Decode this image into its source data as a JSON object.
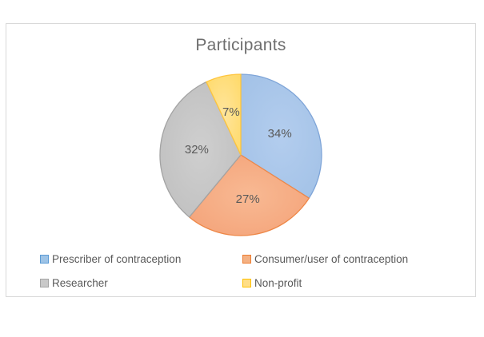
{
  "frame": {
    "border_color": "#D9D9D9",
    "background": "#FFFFFF"
  },
  "chart_data": {
    "type": "pie",
    "title": "Participants",
    "categories": [
      "Prescriber of contraception",
      "Consumer/user of contraception",
      "Researcher",
      "Non-profit"
    ],
    "values": [
      34,
      27,
      32,
      7
    ],
    "data_labels": [
      "34%",
      "27%",
      "32%",
      "7%"
    ],
    "start_angle_deg": 0,
    "direction": "clockwise",
    "legend_position": "bottom",
    "legend_columns": 2,
    "colors": [
      {
        "name": "blue",
        "fill_center": "#B3CDEE",
        "fill": "#A3C2E7",
        "edge": "#7FA5D8",
        "legend_fill": "#9DC3E6",
        "legend_edge": "#5B9BD5"
      },
      {
        "name": "orange",
        "fill_center": "#F8B993",
        "fill": "#F4A379",
        "edge": "#EE8747",
        "legend_fill": "#F4B183",
        "legend_edge": "#ED7D31"
      },
      {
        "name": "gray",
        "fill_center": "#CFCFCF",
        "fill": "#BFBFBF",
        "edge": "#A3A3A3",
        "legend_fill": "#C9C9C9",
        "legend_edge": "#A5A5A5"
      },
      {
        "name": "yellow",
        "fill_center": "#FFE59C",
        "fill": "#FFDA6B",
        "edge": "#FFC53D",
        "legend_fill": "#FFDE87",
        "legend_edge": "#FFC000"
      }
    ],
    "title_color": "#6E6E6E",
    "label_color": "#595959",
    "legend_text_color": "#595959"
  }
}
